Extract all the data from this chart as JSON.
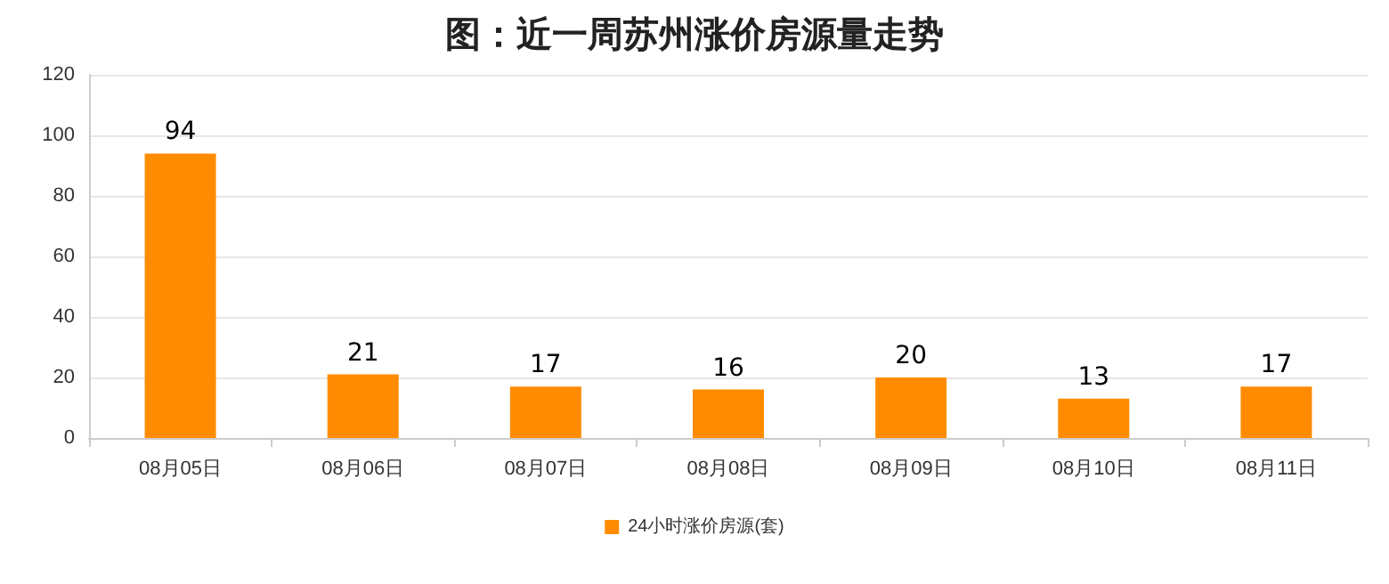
{
  "chart_data": {
    "type": "bar",
    "title": "图：近一周苏州涨价房源量走势",
    "categories": [
      "08月05日",
      "08月06日",
      "08月07日",
      "08月08日",
      "08月09日",
      "08月10日",
      "08月11日"
    ],
    "series": [
      {
        "name": "24小时涨价房源(套)",
        "color": "#ff8c00",
        "values": [
          94,
          21,
          17,
          16,
          20,
          13,
          17
        ]
      }
    ],
    "ylim": [
      0,
      120
    ],
    "yticks": [
      0,
      20,
      40,
      60,
      80,
      100,
      120
    ],
    "grid": "y",
    "legend": "bottom",
    "data_labels": true
  }
}
